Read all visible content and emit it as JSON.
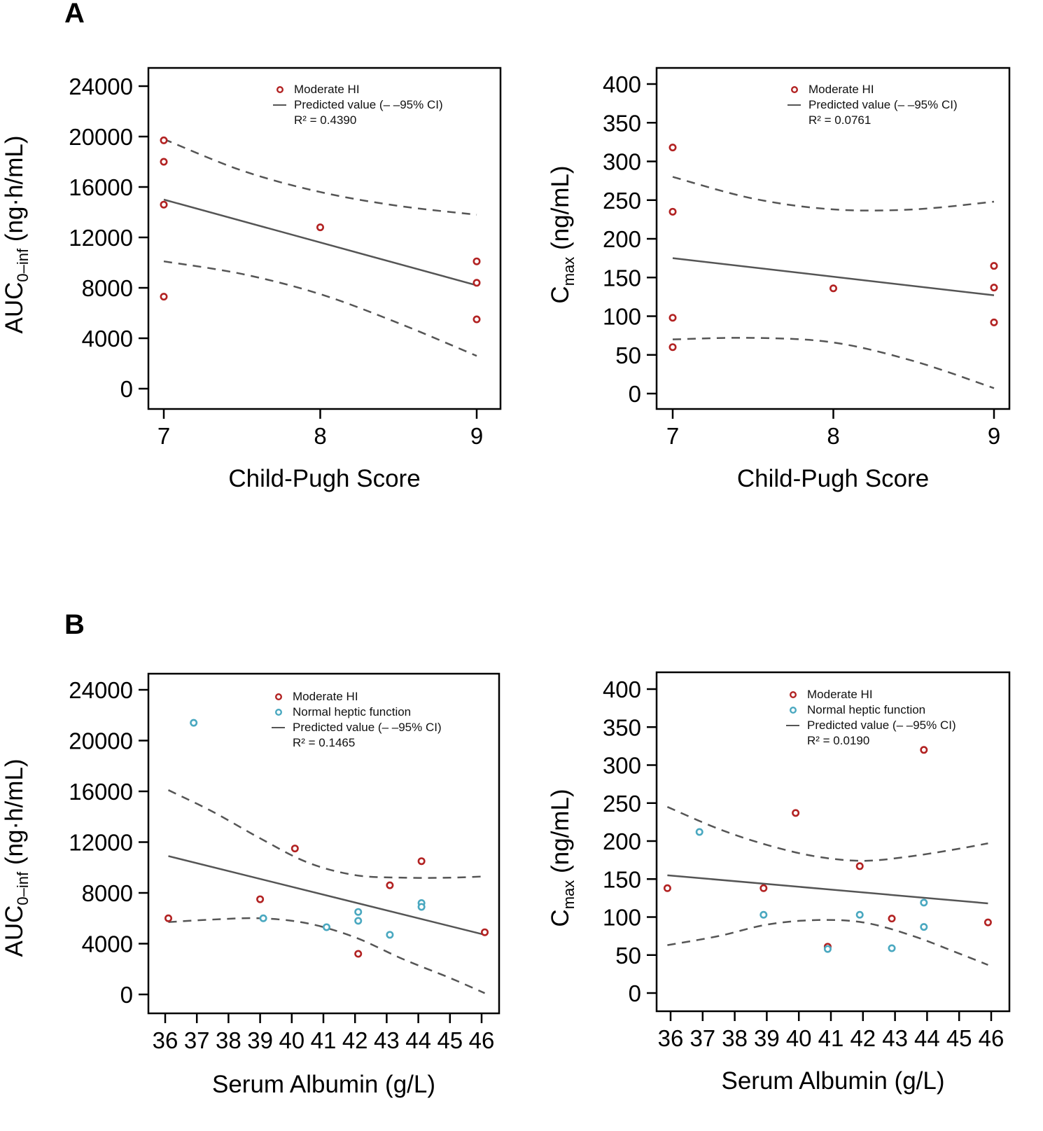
{
  "figure": {
    "panel_labels": [
      "A",
      "B"
    ]
  },
  "colors": {
    "moderate": "#b22222",
    "normal": "#4aa8c0",
    "fit_line": "#555555",
    "ci_line": "#555555"
  },
  "chart_data": [
    {
      "id": "A-auc",
      "type": "scatter",
      "xlabel": "Child-Pugh Score",
      "ylabel": {
        "main": "AUC",
        "sub": "0–inf",
        "unit": " (ng·h/mL)"
      },
      "xlim": [
        7,
        9
      ],
      "ylim": [
        0,
        24000
      ],
      "xticks": [
        7,
        8,
        9
      ],
      "yticks": [
        0,
        4000,
        8000,
        12000,
        16000,
        20000,
        24000
      ],
      "grid": false,
      "legend_position": "top-right",
      "legend": [
        "Moderate HI",
        "Predicted value (– –95% CI)"
      ],
      "r2_label": "R² = 0.4390",
      "series": [
        {
          "name": "Moderate HI",
          "group": "moderate",
          "points": [
            [
              7,
              19700
            ],
            [
              7,
              18000
            ],
            [
              7,
              14600
            ],
            [
              7,
              7300
            ],
            [
              8,
              12800
            ],
            [
              9,
              10100
            ],
            [
              9,
              8400
            ],
            [
              9,
              5500
            ]
          ]
        }
      ],
      "fit": {
        "x": [
          7,
          9
        ],
        "y": [
          15000,
          8200
        ]
      },
      "ci_upper": {
        "x": [
          7,
          7.5,
          8,
          8.5,
          9
        ],
        "y": [
          19800,
          17300,
          15600,
          14500,
          13800
        ]
      },
      "ci_lower": {
        "x": [
          7,
          7.5,
          8,
          8.5,
          9
        ],
        "y": [
          10100,
          9100,
          7500,
          5200,
          2600
        ]
      }
    },
    {
      "id": "A-cmax",
      "type": "scatter",
      "xlabel": "Child-Pugh Score",
      "ylabel": {
        "main": "C",
        "sub": "max",
        "unit": " (ng/mL)"
      },
      "xlim": [
        7,
        9
      ],
      "ylim": [
        0,
        400
      ],
      "xticks": [
        7,
        8,
        9
      ],
      "yticks": [
        0,
        50,
        100,
        150,
        200,
        250,
        300,
        350,
        400
      ],
      "grid": false,
      "legend_position": "top-right",
      "legend": [
        "Moderate HI",
        "Predicted value (– –95% CI)"
      ],
      "r2_label": "R² = 0.0761",
      "series": [
        {
          "name": "Moderate HI",
          "group": "moderate",
          "points": [
            [
              7,
              318
            ],
            [
              7,
              235
            ],
            [
              7,
              98
            ],
            [
              7,
              60
            ],
            [
              8,
              136
            ],
            [
              9,
              165
            ],
            [
              9,
              137
            ],
            [
              9,
              92
            ]
          ]
        }
      ],
      "fit": {
        "x": [
          7,
          9
        ],
        "y": [
          175,
          127
        ]
      },
      "ci_upper": {
        "x": [
          7,
          7.5,
          8,
          8.5,
          9
        ],
        "y": [
          280,
          252,
          238,
          238,
          248
        ]
      },
      "ci_lower": {
        "x": [
          7,
          7.5,
          8,
          8.5,
          9
        ],
        "y": [
          70,
          72,
          66,
          42,
          7
        ]
      }
    },
    {
      "id": "B-auc",
      "type": "scatter",
      "xlabel": "Serum Albumin (g/L)",
      "ylabel": {
        "main": "AUC",
        "sub": "0–inf",
        "unit": " (ng·h/mL)"
      },
      "xlim": [
        36,
        46
      ],
      "ylim": [
        0,
        24000
      ],
      "xticks": [
        36,
        37,
        38,
        39,
        40,
        41,
        42,
        43,
        44,
        45,
        46
      ],
      "yticks": [
        0,
        4000,
        8000,
        12000,
        16000,
        20000,
        24000
      ],
      "grid": false,
      "legend_position": "top-right",
      "legend": [
        "Moderate HI",
        "Normal heptic function",
        "Predicted value (– –95% CI)"
      ],
      "r2_label": "R² = 0.1465",
      "series": [
        {
          "name": "Moderate HI",
          "group": "moderate",
          "points": [
            [
              36.1,
              6000
            ],
            [
              39,
              7500
            ],
            [
              40.1,
              11500
            ],
            [
              42.1,
              3200
            ],
            [
              43.1,
              8600
            ],
            [
              44.1,
              10500
            ],
            [
              46.1,
              4900
            ]
          ]
        },
        {
          "name": "Normal heptic function",
          "group": "normal",
          "points": [
            [
              36.9,
              21400
            ],
            [
              39.1,
              6000
            ],
            [
              41.1,
              5300
            ],
            [
              42.1,
              6500
            ],
            [
              42.1,
              5800
            ],
            [
              43.1,
              4700
            ],
            [
              44.1,
              7200
            ],
            [
              44.1,
              6900
            ]
          ]
        }
      ],
      "fit": {
        "x": [
          36.1,
          46.1
        ],
        "y": [
          10900,
          4700
        ]
      },
      "ci_upper": {
        "x": [
          36.1,
          37.5,
          39,
          40.5,
          42,
          43.5,
          45,
          46.1
        ],
        "y": [
          16100,
          14400,
          12300,
          10400,
          9400,
          9200,
          9200,
          9300
        ]
      },
      "ci_lower": {
        "x": [
          36.1,
          37.5,
          39,
          40.5,
          42,
          43.5,
          45,
          46.1
        ],
        "y": [
          5700,
          5900,
          6000,
          5600,
          4500,
          2800,
          1300,
          100
        ]
      }
    },
    {
      "id": "B-cmax",
      "type": "scatter",
      "xlabel": "Serum Albumin (g/L)",
      "ylabel": {
        "main": "C",
        "sub": "max",
        "unit": " (ng/mL)"
      },
      "xlim": [
        36,
        46
      ],
      "ylim": [
        0,
        400
      ],
      "xticks": [
        36,
        37,
        38,
        39,
        40,
        41,
        42,
        43,
        44,
        45,
        46
      ],
      "yticks": [
        0,
        50,
        100,
        150,
        200,
        250,
        300,
        350,
        400
      ],
      "grid": false,
      "legend_position": "top-right",
      "legend": [
        "Moderate HI",
        "Normal heptic function",
        "Predicted value (– –95% CI)"
      ],
      "r2_label": "R² = 0.0190",
      "series": [
        {
          "name": "Moderate HI",
          "group": "moderate",
          "points": [
            [
              35.9,
              138
            ],
            [
              38.9,
              138
            ],
            [
              39.9,
              237
            ],
            [
              40.9,
              61
            ],
            [
              41.9,
              167
            ],
            [
              42.9,
              98
            ],
            [
              43.9,
              320
            ],
            [
              45.9,
              93
            ]
          ]
        },
        {
          "name": "Normal heptic function",
          "group": "normal",
          "points": [
            [
              36.9,
              212
            ],
            [
              38.9,
              103
            ],
            [
              40.9,
              58
            ],
            [
              41.9,
              103
            ],
            [
              42.9,
              59
            ],
            [
              43.9,
              119
            ],
            [
              43.9,
              87
            ]
          ]
        }
      ],
      "fit": {
        "x": [
          35.9,
          45.9
        ],
        "y": [
          155,
          118
        ]
      },
      "ci_upper": {
        "x": [
          35.9,
          37.5,
          39,
          40.5,
          42,
          43.5,
          45,
          45.9
        ],
        "y": [
          245,
          216,
          195,
          180,
          174,
          180,
          190,
          197
        ]
      },
      "ci_lower": {
        "x": [
          35.9,
          37.5,
          39,
          40.5,
          42,
          43.5,
          45,
          45.9
        ],
        "y": [
          63,
          75,
          90,
          96,
          93,
          76,
          52,
          37
        ]
      }
    }
  ]
}
